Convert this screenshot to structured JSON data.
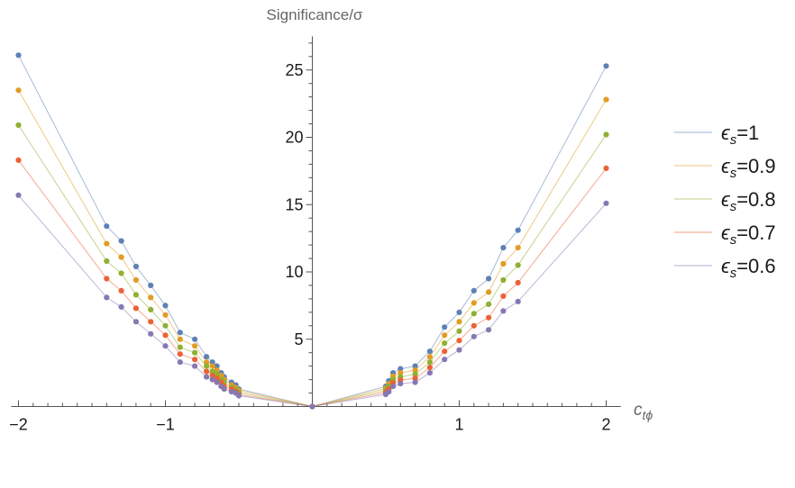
{
  "chart_data": {
    "type": "line",
    "ylabel": "Significance/σ",
    "xlabel_main": "c",
    "xlabel_sub": "tϕ",
    "xlim": [
      -2.05,
      2.1
    ],
    "ylim": [
      0,
      27.5
    ],
    "x_ticks": [
      -2,
      -1,
      1,
      2
    ],
    "x_tick_labels": [
      "−2",
      "−1",
      "1",
      "2"
    ],
    "y_ticks": [
      5,
      10,
      15,
      20,
      25
    ],
    "y_tick_labels": [
      "5",
      "10",
      "15",
      "20",
      "25"
    ],
    "grid": false,
    "legend_position": "right",
    "x": [
      -2,
      -1.4,
      -1.3,
      -1.2,
      -1.1,
      -1.0,
      -0.9,
      -0.8,
      -0.72,
      -0.68,
      -0.65,
      -0.62,
      -0.6,
      -0.55,
      -0.52,
      -0.5,
      0,
      0.5,
      0.52,
      0.55,
      0.6,
      0.7,
      0.8,
      0.9,
      1.0,
      1.1,
      1.2,
      1.3,
      1.4,
      2.0
    ],
    "series": [
      {
        "name_main": "ϵ",
        "name_sub": "s",
        "name_rest": "=1",
        "color": "#5e81b5",
        "values": [
          26.1,
          13.4,
          12.3,
          10.4,
          9.0,
          7.5,
          5.5,
          5.0,
          3.7,
          3.3,
          3.0,
          2.5,
          2.2,
          1.8,
          1.6,
          1.3,
          0,
          1.5,
          1.9,
          2.5,
          2.8,
          3.0,
          4.1,
          5.9,
          7.0,
          8.6,
          9.5,
          11.8,
          13.1,
          25.3
        ]
      },
      {
        "name_main": "ϵ",
        "name_sub": "s",
        "name_rest": "=0.9",
        "color": "#e19c24",
        "values": [
          23.5,
          12.1,
          11.1,
          9.4,
          8.1,
          6.8,
          5.0,
          4.5,
          3.3,
          3.0,
          2.7,
          2.3,
          2.0,
          1.6,
          1.4,
          1.2,
          0,
          1.35,
          1.7,
          2.25,
          2.5,
          2.7,
          3.7,
          5.3,
          6.3,
          7.7,
          8.5,
          10.6,
          11.8,
          22.8
        ]
      },
      {
        "name_main": "ϵ",
        "name_sub": "s",
        "name_rest": "=0.8",
        "color": "#8fb032",
        "values": [
          20.9,
          10.8,
          9.9,
          8.3,
          7.2,
          6.0,
          4.4,
          4.0,
          3.0,
          2.6,
          2.4,
          2.0,
          1.8,
          1.4,
          1.3,
          1.05,
          0,
          1.2,
          1.5,
          2.0,
          2.2,
          2.4,
          3.3,
          4.7,
          5.6,
          6.9,
          7.6,
          9.4,
          10.5,
          20.2
        ]
      },
      {
        "name_main": "ϵ",
        "name_sub": "s",
        "name_rest": "=0.7",
        "color": "#eb6235",
        "values": [
          18.3,
          9.5,
          8.6,
          7.3,
          6.3,
          5.3,
          3.9,
          3.5,
          2.6,
          2.3,
          2.1,
          1.8,
          1.5,
          1.3,
          1.1,
          0.9,
          0,
          1.05,
          1.3,
          1.75,
          1.95,
          2.1,
          2.9,
          4.1,
          4.9,
          6.0,
          6.6,
          8.2,
          9.2,
          17.7
        ]
      },
      {
        "name_main": "ϵ",
        "name_sub": "s",
        "name_rest": "=0.6",
        "color": "#8778b3",
        "values": [
          15.7,
          8.1,
          7.4,
          6.3,
          5.4,
          4.5,
          3.3,
          3.0,
          2.2,
          2.0,
          1.8,
          1.5,
          1.3,
          1.1,
          1.0,
          0.8,
          0,
          0.9,
          1.1,
          1.5,
          1.7,
          1.8,
          2.5,
          3.5,
          4.2,
          5.2,
          5.7,
          7.1,
          7.8,
          15.1
        ]
      }
    ]
  }
}
